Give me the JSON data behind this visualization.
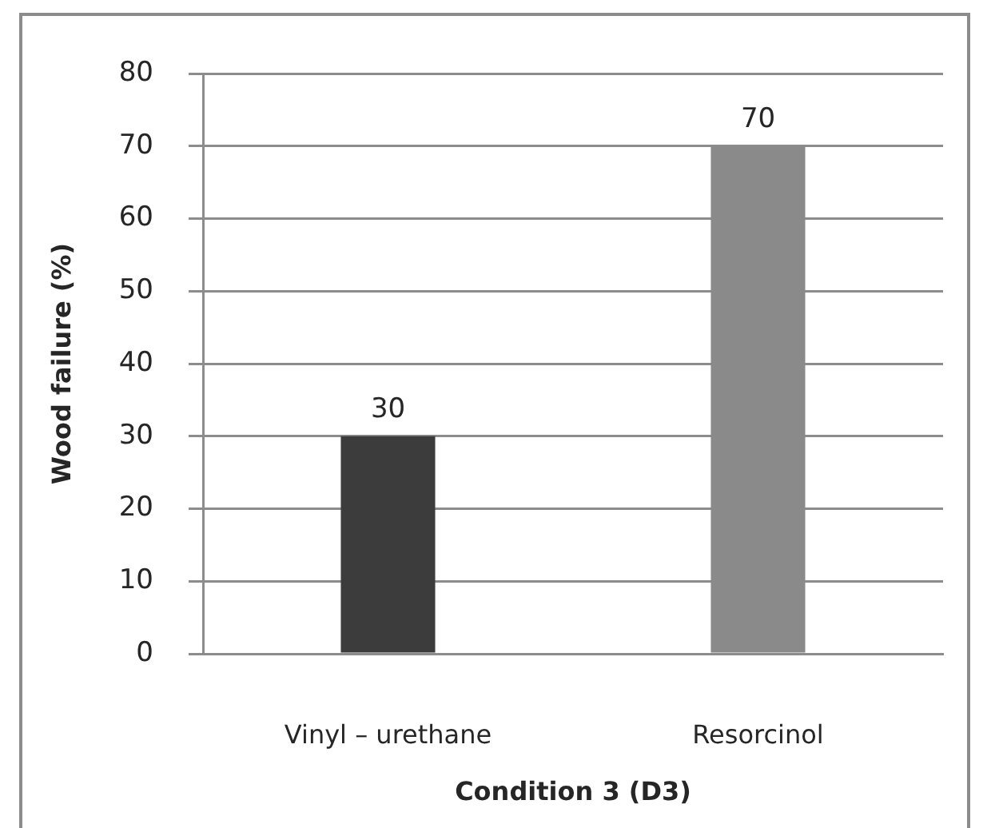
{
  "chart_data": {
    "type": "bar",
    "xlabel": "Condition 3 (D3)",
    "ylabel": "Wood failure (%)",
    "categories": [
      "Vinyl – urethane",
      "Resorcinol"
    ],
    "values": [
      30,
      70
    ],
    "colors": [
      "#3c3c3c",
      "#8a8a8a"
    ],
    "ylim": [
      0,
      80
    ],
    "yticks": [
      0,
      10,
      20,
      30,
      40,
      50,
      60,
      70,
      80
    ],
    "grid": "y",
    "data_labels": true
  }
}
